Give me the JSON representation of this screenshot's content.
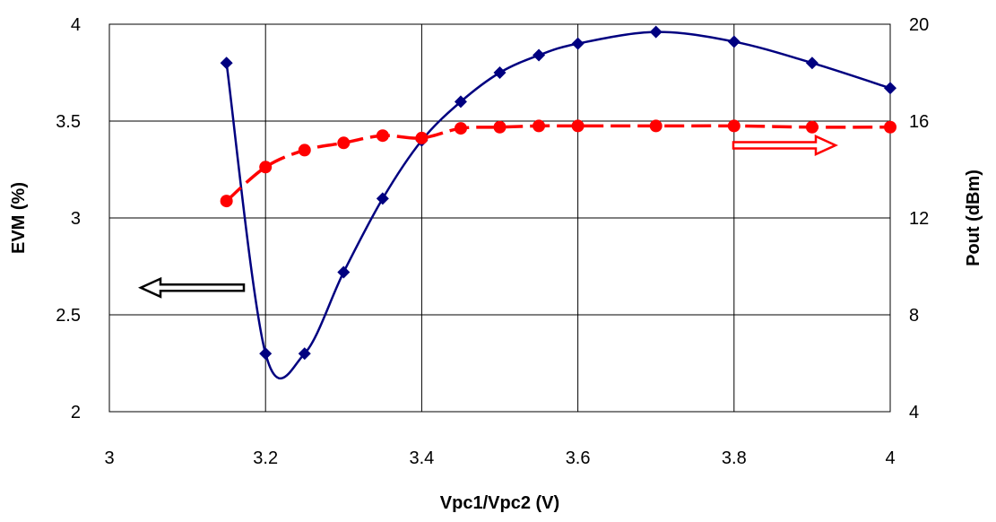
{
  "chart_data": {
    "type": "line",
    "xlabel": "Vpc1/Vpc2 (V)",
    "ylabel": "EVM (%)",
    "y2label": "Pout (dBm)",
    "xlim": [
      3,
      4
    ],
    "ylim": [
      2,
      4
    ],
    "y2lim": [
      4,
      20
    ],
    "x_ticks": [
      "3",
      "3.2",
      "3.4",
      "3.6",
      "3.8",
      "4"
    ],
    "y_ticks": [
      "2",
      "2.5",
      "3",
      "3.5",
      "4"
    ],
    "y2_ticks": [
      "4",
      "8",
      "12",
      "16",
      "20"
    ],
    "grid": true,
    "series": [
      {
        "axis": "left",
        "color": "#000080",
        "marker": "diamond",
        "line_style": "solid",
        "x": [
          3.15,
          3.2,
          3.25,
          3.3,
          3.35,
          3.4,
          3.45,
          3.5,
          3.55,
          3.6,
          3.7,
          3.8,
          3.9,
          4.0
        ],
        "values": [
          3.8,
          2.3,
          2.3,
          2.72,
          3.1,
          3.4,
          3.6,
          3.75,
          3.84,
          3.9,
          3.96,
          3.91,
          3.8,
          3.67
        ]
      },
      {
        "axis": "right",
        "color": "#ff0000",
        "marker": "circle",
        "line_style": "dashed",
        "x": [
          3.15,
          3.2,
          3.25,
          3.3,
          3.35,
          3.4,
          3.45,
          3.5,
          3.55,
          3.6,
          3.7,
          3.8,
          3.9,
          4.0
        ],
        "values": [
          12.7,
          14.1,
          14.8,
          15.1,
          15.4,
          15.3,
          15.7,
          15.75,
          15.8,
          15.8,
          15.8,
          15.8,
          15.75,
          15.75
        ]
      }
    ],
    "annotations": [
      {
        "type": "arrow",
        "direction": "left",
        "color": "#000000",
        "points_to": "left-axis"
      },
      {
        "type": "arrow",
        "direction": "right",
        "color": "#ff0000",
        "points_to": "right-axis"
      }
    ]
  }
}
